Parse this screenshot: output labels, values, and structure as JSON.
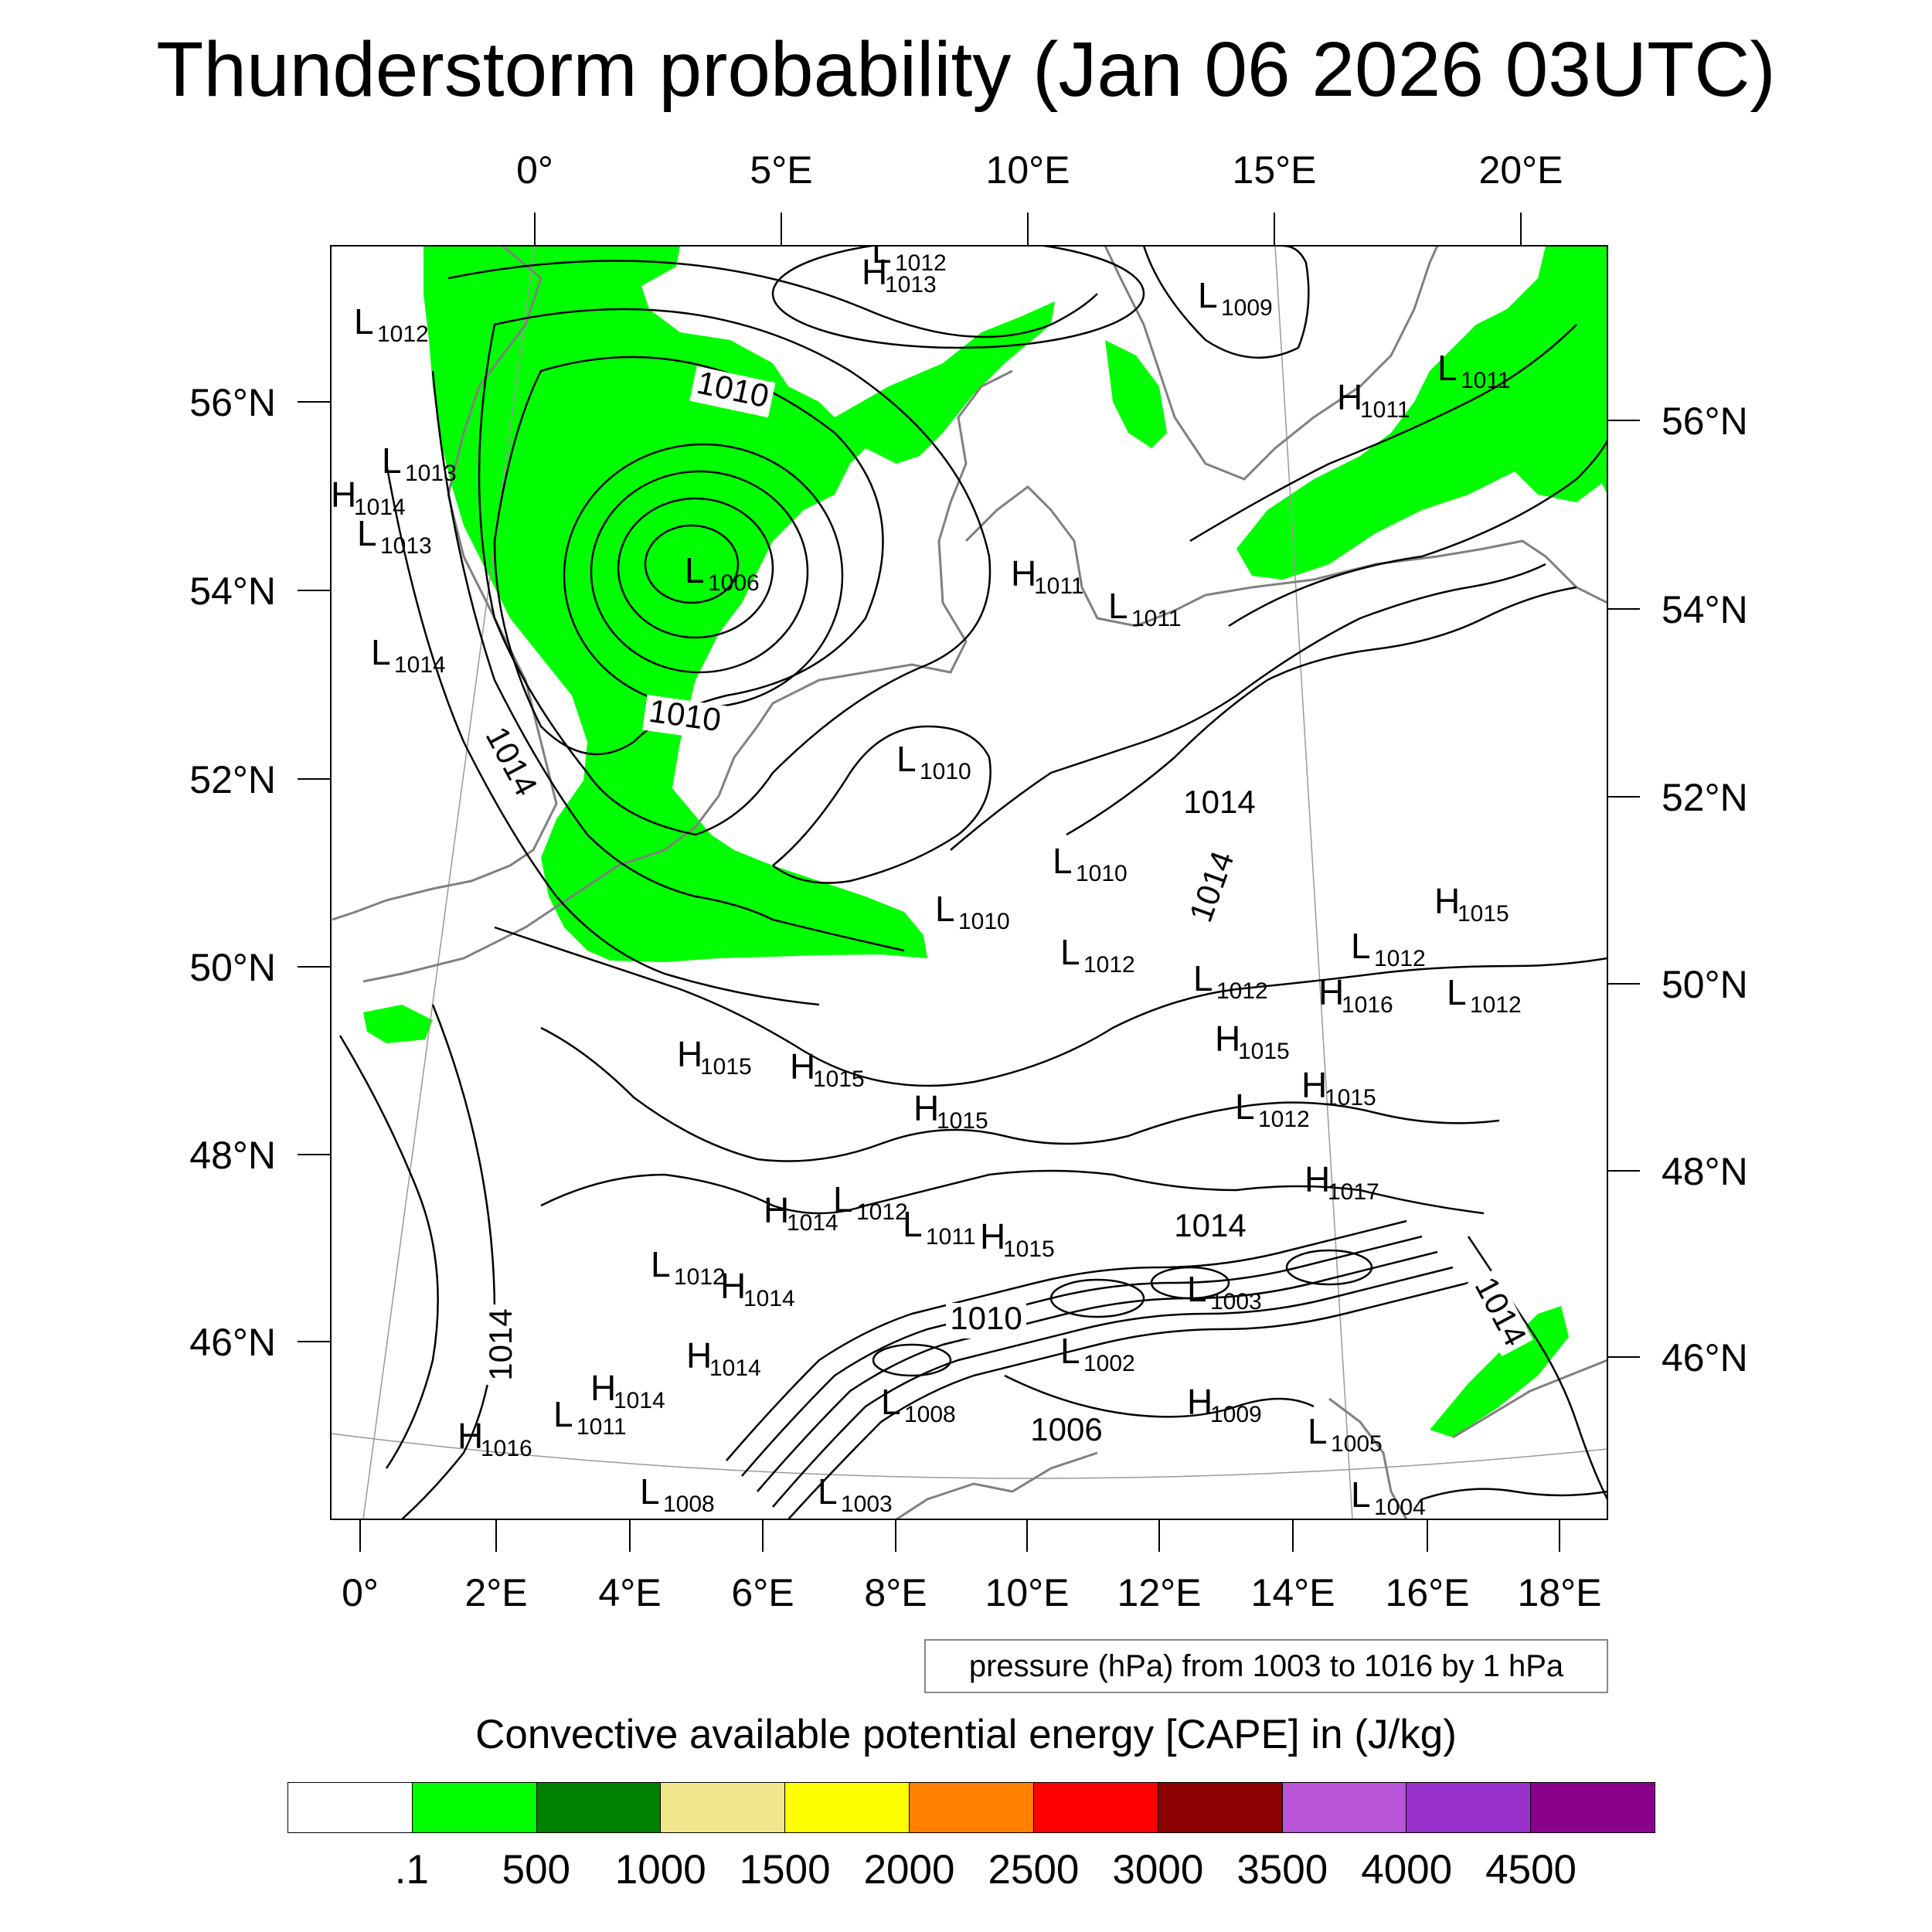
{
  "title": "Thunderstorm probability (Jan 06 2026 03UTC)",
  "map": {
    "top_lon_labels": [
      "0°",
      "5°E",
      "10°E",
      "15°E",
      "20°E"
    ],
    "bottom_lon_labels": [
      "0°",
      "2°E",
      "4°E",
      "6°E",
      "8°E",
      "10°E",
      "12°E",
      "14°E",
      "16°E",
      "18°E"
    ],
    "left_lat_labels": [
      "56°N",
      "54°N",
      "52°N",
      "50°N",
      "48°N",
      "46°N"
    ],
    "right_lat_labels": [
      "56°N",
      "54°N",
      "52°N",
      "50°N",
      "48°N",
      "46°N"
    ],
    "pressure_centers": [
      {
        "type": "L",
        "value": "1012"
      },
      {
        "type": "H",
        "value": "1013"
      },
      {
        "type": "L",
        "value": "1009"
      },
      {
        "type": "L",
        "value": "1012"
      },
      {
        "type": "L",
        "value": "1011"
      },
      {
        "type": "H",
        "value": "1011"
      },
      {
        "type": "L",
        "value": "1013"
      },
      {
        "type": "H",
        "value": "1014"
      },
      {
        "type": "L",
        "value": "1013"
      },
      {
        "type": "L",
        "value": "1006"
      },
      {
        "type": "H",
        "value": "1011"
      },
      {
        "type": "L",
        "value": "1011"
      },
      {
        "type": "L",
        "value": "1014"
      },
      {
        "type": "L",
        "value": "1010"
      },
      {
        "type": "L",
        "value": "1010"
      },
      {
        "type": "L",
        "value": "1010"
      },
      {
        "type": "H",
        "value": "1015"
      },
      {
        "type": "L",
        "value": "1012"
      },
      {
        "type": "L",
        "value": "1012"
      },
      {
        "type": "L",
        "value": "1012"
      },
      {
        "type": "H",
        "value": "1016"
      },
      {
        "type": "L",
        "value": "1012"
      },
      {
        "type": "H",
        "value": "1015"
      },
      {
        "type": "H",
        "value": "1015"
      },
      {
        "type": "H",
        "value": "1015"
      },
      {
        "type": "H",
        "value": "1015"
      },
      {
        "type": "L",
        "value": "1012"
      },
      {
        "type": "H",
        "value": "1015"
      },
      {
        "type": "H",
        "value": "1017"
      },
      {
        "type": "H",
        "value": "1014"
      },
      {
        "type": "L",
        "value": "1012"
      },
      {
        "type": "L",
        "value": "1011"
      },
      {
        "type": "H",
        "value": "1015"
      },
      {
        "type": "L",
        "value": "1012"
      },
      {
        "type": "H",
        "value": "1014"
      },
      {
        "type": "L",
        "value": "1003"
      },
      {
        "type": "L",
        "value": "1002"
      },
      {
        "type": "H",
        "value": "1014"
      },
      {
        "type": "H",
        "value": "1014"
      },
      {
        "type": "L",
        "value": "1011"
      },
      {
        "type": "H",
        "value": "1016"
      },
      {
        "type": "L",
        "value": "1008"
      },
      {
        "type": "L",
        "value": "1003"
      },
      {
        "type": "L",
        "value": "1008"
      },
      {
        "type": "H",
        "value": "1009"
      },
      {
        "type": "L",
        "value": "1005"
      },
      {
        "type": "L",
        "value": "1004"
      }
    ],
    "isobar_labels": [
      "1010",
      "1010",
      "1014",
      "1014",
      "1014",
      "1014",
      "1014",
      "1014",
      "1010",
      "1006"
    ]
  },
  "pressure_note": "pressure (hPa) from 1003 to 1016 by 1 hPa",
  "colorbar": {
    "title": "Convective available potential energy [CAPE] in (J/kg)",
    "colors": [
      "#ffffff",
      "#00ff00",
      "#008000",
      "#f0e68c",
      "#ffff00",
      "#ff8000",
      "#ff0000",
      "#8b0000",
      "#b856d7",
      "#9932cc",
      "#8b008b"
    ],
    "labels": [
      ".1",
      "500",
      "1000",
      "1500",
      "2000",
      "2500",
      "3000",
      "3500",
      "4000",
      "4500"
    ]
  }
}
